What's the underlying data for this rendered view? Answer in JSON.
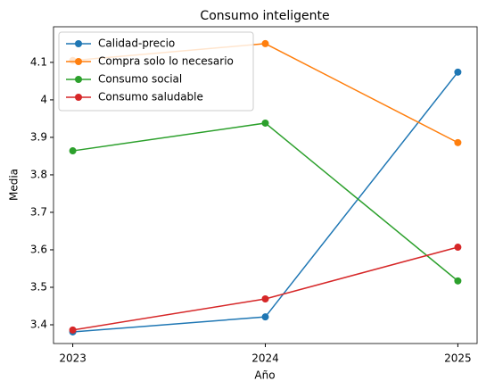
{
  "chart_data": {
    "type": "line",
    "title": "Consumo inteligente",
    "x_label": "Año",
    "y_label": "Media",
    "x": [
      2023,
      2024,
      2025
    ],
    "series": [
      {
        "name": "Calidad-precio",
        "color": "#1f77b4",
        "values": [
          3.381,
          3.421,
          4.074
        ]
      },
      {
        "name": "Compra solo lo necesario",
        "color": "#ff7f0e",
        "values": [
          4.105,
          4.15,
          3.886
        ]
      },
      {
        "name": "Consumo social",
        "color": "#2ca02c",
        "values": [
          3.864,
          3.938,
          3.517
        ]
      },
      {
        "name": "Consumo saludable",
        "color": "#d62728",
        "values": [
          3.386,
          3.469,
          3.607
        ]
      }
    ],
    "xlim": [
      2022.9,
      2025.1
    ],
    "xticks": [
      2023,
      2024,
      2025
    ],
    "ylim": [
      3.35,
      4.195
    ],
    "yticks": [
      3.4,
      3.5,
      3.6,
      3.7,
      3.8,
      3.9,
      4.0,
      4.1
    ],
    "legend": "upper left",
    "grid": false
  }
}
